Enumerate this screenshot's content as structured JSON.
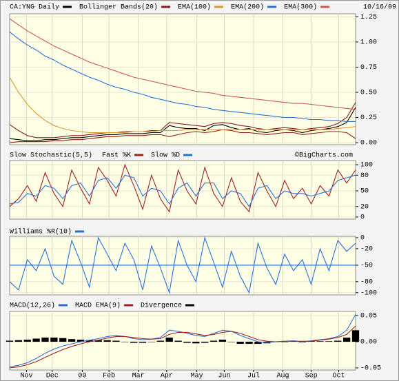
{
  "chart_data": [
    {
      "type": "line",
      "date": "10/16/09",
      "ylim": [
        -0.02,
        1.28
      ],
      "yticks": [
        {
          "value": 0,
          "label": "0.00"
        },
        0.25,
        {
          "value": 0.5,
          "label": "0.50"
        },
        0.75,
        {
          "value": 1,
          "label": "1.00"
        },
        1.25
      ],
      "grid": true,
      "series": [
        {
          "name": "CA:YNG Daily",
          "color": "#000000",
          "values": [
            0.04,
            0.03,
            0.02,
            0.02,
            0.03,
            0.03,
            0.04,
            0.05,
            0.05,
            0.06,
            0.07,
            0.08,
            0.08,
            0.09,
            0.09,
            0.09,
            0.1,
            0.1,
            0.17,
            0.15,
            0.14,
            0.14,
            0.12,
            0.17,
            0.18,
            0.15,
            0.13,
            0.14,
            0.11,
            0.1,
            0.12,
            0.13,
            0.12,
            0.1,
            0.12,
            0.13,
            0.14,
            0.16,
            0.2,
            0.35
          ]
        },
        {
          "name": "Bollinger Bands(20)",
          "color": "#8b1a1a",
          "upper": [
            0.18,
            0.12,
            0.07,
            0.05,
            0.05,
            0.05,
            0.06,
            0.07,
            0.07,
            0.08,
            0.09,
            0.1,
            0.1,
            0.11,
            0.11,
            0.11,
            0.12,
            0.12,
            0.2,
            0.19,
            0.18,
            0.17,
            0.16,
            0.19,
            0.2,
            0.19,
            0.17,
            0.16,
            0.14,
            0.13,
            0.14,
            0.15,
            0.14,
            0.13,
            0.14,
            0.15,
            0.16,
            0.19,
            0.25,
            0.4
          ],
          "lower": [
            0.0,
            0.01,
            0.01,
            0.01,
            0.01,
            0.02,
            0.02,
            0.03,
            0.03,
            0.04,
            0.05,
            0.06,
            0.06,
            0.07,
            0.07,
            0.07,
            0.08,
            0.08,
            0.06,
            0.08,
            0.1,
            0.11,
            0.1,
            0.11,
            0.13,
            0.12,
            0.1,
            0.1,
            0.09,
            0.08,
            0.09,
            0.1,
            0.1,
            0.08,
            0.09,
            0.1,
            0.11,
            0.11,
            0.1,
            0.04
          ]
        },
        {
          "name": "EMA(100)",
          "color": "#d89a30",
          "values": [
            0.65,
            0.5,
            0.38,
            0.29,
            0.22,
            0.17,
            0.14,
            0.12,
            0.11,
            0.1,
            0.1,
            0.1,
            0.1,
            0.1,
            0.11,
            0.11,
            0.11,
            0.12,
            0.12,
            0.12,
            0.13,
            0.13,
            0.13,
            0.13,
            0.13,
            0.13,
            0.13,
            0.13,
            0.13,
            0.13,
            0.13,
            0.13,
            0.13,
            0.13,
            0.13,
            0.13,
            0.13,
            0.14,
            0.15,
            0.16
          ]
        },
        {
          "name": "EMA(200)",
          "color": "#2a6fd6",
          "values": [
            1.1,
            1.03,
            0.97,
            0.92,
            0.86,
            0.82,
            0.77,
            0.73,
            0.69,
            0.65,
            0.62,
            0.58,
            0.55,
            0.53,
            0.5,
            0.48,
            0.45,
            0.43,
            0.41,
            0.39,
            0.38,
            0.36,
            0.35,
            0.33,
            0.32,
            0.31,
            0.3,
            0.29,
            0.28,
            0.27,
            0.26,
            0.25,
            0.25,
            0.24,
            0.23,
            0.23,
            0.22,
            0.22,
            0.21,
            0.21
          ]
        },
        {
          "name": "EMA(300)",
          "color": "#c85a50",
          "values": [
            1.23,
            1.17,
            1.11,
            1.06,
            1.01,
            0.96,
            0.92,
            0.88,
            0.84,
            0.8,
            0.77,
            0.74,
            0.71,
            0.68,
            0.65,
            0.63,
            0.61,
            0.59,
            0.57,
            0.55,
            0.53,
            0.51,
            0.5,
            0.49,
            0.47,
            0.46,
            0.45,
            0.44,
            0.43,
            0.42,
            0.41,
            0.4,
            0.39,
            0.39,
            0.38,
            0.37,
            0.36,
            0.35,
            0.34,
            0.33
          ]
        }
      ]
    },
    {
      "type": "line",
      "title": "Slow Stochastic(5,5)",
      "watermark": "©BigCharts.com",
      "ylim": [
        -4,
        108
      ],
      "yticks": [
        0,
        20,
        50,
        80,
        100
      ],
      "grid": true,
      "series": [
        {
          "name": "Fast %K",
          "color": "#a02020",
          "values": [
            20,
            35,
            60,
            30,
            85,
            45,
            20,
            90,
            55,
            25,
            95,
            70,
            40,
            100,
            60,
            15,
            80,
            35,
            10,
            90,
            50,
            25,
            95,
            45,
            20,
            75,
            30,
            10,
            85,
            50,
            20,
            70,
            35,
            55,
            25,
            60,
            40,
            90,
            65,
            90
          ]
        },
        {
          "name": "Slow %D",
          "color": "#2a6fd6",
          "values": [
            25,
            28,
            45,
            40,
            60,
            55,
            35,
            60,
            65,
            40,
            70,
            75,
            55,
            80,
            75,
            40,
            55,
            50,
            25,
            55,
            65,
            40,
            65,
            65,
            35,
            50,
            45,
            20,
            55,
            60,
            35,
            50,
            45,
            45,
            40,
            45,
            50,
            70,
            75,
            80
          ]
        }
      ]
    },
    {
      "type": "line",
      "ylim": [
        -104,
        2.5
      ],
      "yticks": [
        0,
        -20,
        -50,
        -80,
        -100
      ],
      "grid": true,
      "reference_line": {
        "value": -50,
        "color": "#2a6fd6"
      },
      "series": [
        {
          "name": "Williams %R(10)",
          "color": "#2a6fd6",
          "values": [
            -80,
            -95,
            -40,
            -60,
            -20,
            -70,
            -85,
            -5,
            -45,
            -90,
            0,
            -30,
            -60,
            -10,
            -40,
            -95,
            -15,
            -55,
            -100,
            -5,
            -50,
            -80,
            0,
            -45,
            -90,
            -25,
            -70,
            -100,
            -10,
            -55,
            -85,
            -30,
            -60,
            -40,
            -85,
            -20,
            -60,
            -5,
            -25,
            -10
          ]
        }
      ]
    },
    {
      "type": "line",
      "ylim": [
        -0.054,
        0.058
      ],
      "yticks": [
        0.05,
        {
          "value": 0,
          "label": "0.00"
        },
        -0.05
      ],
      "grid": true,
      "xlim": [
        0,
        39
      ],
      "xticks": [
        {
          "value": 1.9,
          "label": "Nov"
        },
        {
          "value": 4.8,
          "label": "Dec"
        },
        {
          "value": 8.2,
          "label": "09"
        },
        {
          "value": 11.2,
          "label": "Feb"
        },
        {
          "value": 14.5,
          "label": "Mar"
        },
        {
          "value": 17.7,
          "label": "Apr"
        },
        {
          "value": 21.1,
          "label": "May"
        },
        {
          "value": 24.2,
          "label": "Jun"
        },
        {
          "value": 27.5,
          "label": "Jul"
        },
        {
          "value": 30.8,
          "label": "Aug"
        },
        {
          "value": 34.0,
          "label": "Sep"
        },
        {
          "value": 37.1,
          "label": "Oct"
        }
      ],
      "series": [
        {
          "name": "MACD(12,26)",
          "color": "#2a6fd6",
          "values": [
            -0.048,
            -0.045,
            -0.04,
            -0.032,
            -0.022,
            -0.014,
            -0.008,
            -0.004,
            0.0,
            0.003,
            0.006,
            0.01,
            0.012,
            0.01,
            0.006,
            0.004,
            0.005,
            0.008,
            0.022,
            0.02,
            0.016,
            0.012,
            0.01,
            0.016,
            0.022,
            0.02,
            0.012,
            0.006,
            0.0,
            -0.002,
            0.0,
            0.001,
            0.002,
            0.0,
            0.002,
            0.004,
            0.006,
            0.01,
            0.022,
            0.052
          ]
        },
        {
          "name": "MACD EMA(9)",
          "color": "#a02020",
          "values": [
            -0.05,
            -0.048,
            -0.044,
            -0.038,
            -0.03,
            -0.022,
            -0.015,
            -0.009,
            -0.004,
            0.0,
            0.003,
            0.007,
            0.01,
            0.01,
            0.008,
            0.006,
            0.005,
            0.006,
            0.014,
            0.018,
            0.018,
            0.015,
            0.012,
            0.014,
            0.018,
            0.02,
            0.016,
            0.01,
            0.004,
            0.001,
            0.0,
            0.001,
            0.001,
            0.001,
            0.001,
            0.003,
            0.005,
            0.008,
            0.014,
            0.03
          ]
        },
        {
          "name": "Divergence",
          "color": "#000000",
          "style": "bar",
          "values": [
            0.002,
            0.003,
            0.004,
            0.006,
            0.008,
            0.008,
            0.007,
            0.005,
            0.004,
            0.003,
            0.003,
            0.003,
            0.002,
            0.0,
            -0.002,
            -0.002,
            0.0,
            0.002,
            0.008,
            0.002,
            -0.002,
            -0.003,
            -0.002,
            0.002,
            0.004,
            0.0,
            -0.004,
            -0.004,
            -0.004,
            -0.003,
            0.0,
            0.0,
            0.001,
            -0.001,
            0.001,
            0.001,
            0.001,
            0.002,
            0.008,
            0.022
          ]
        }
      ]
    }
  ]
}
